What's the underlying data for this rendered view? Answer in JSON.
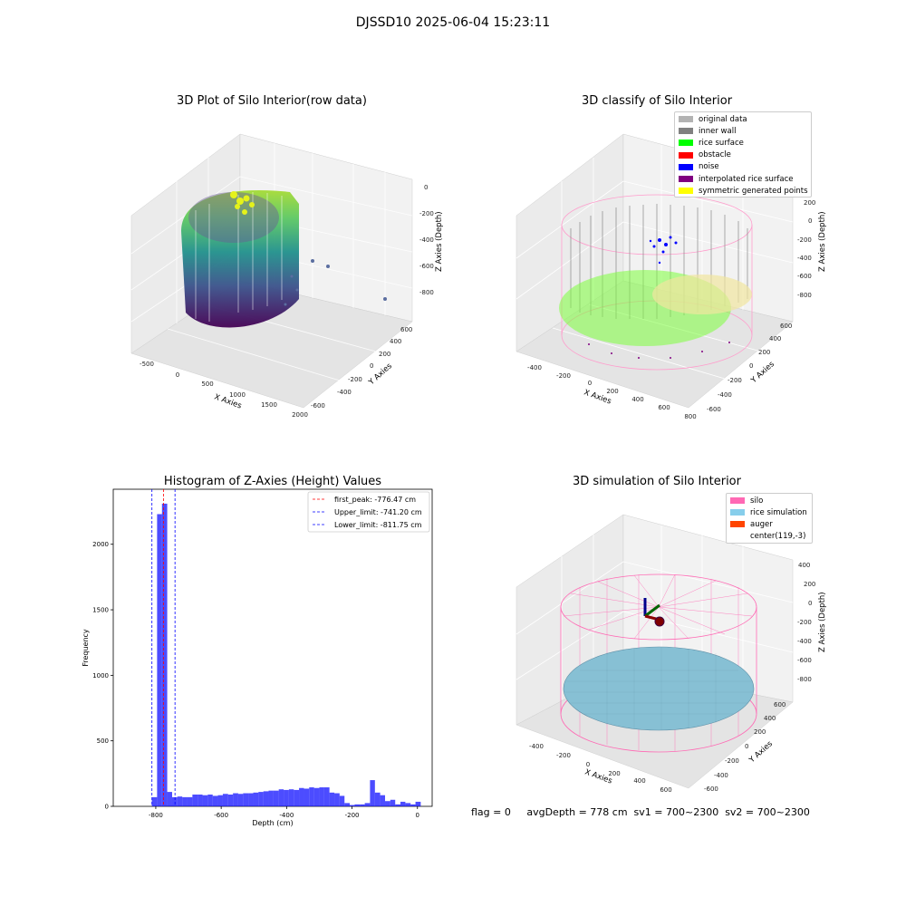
{
  "figure": {
    "suptitle": "DJSSD10 2025-06-04 15:23:11",
    "footer": "flag = 0     avgDepth = 778 cm  sv1 = 700~2300  sv2 = 700~2300"
  },
  "panels": {
    "raw": {
      "title": "3D Plot of Silo Interior(row data)",
      "xlabel": "X Axies",
      "ylabel": "Y Axies",
      "zlabel": "Z Axies (Depth)",
      "xticks": [
        "-500",
        "0",
        "500",
        "1000",
        "1500",
        "2000"
      ],
      "yticks": [
        "-600",
        "-400",
        "-200",
        "0",
        "200",
        "400",
        "600"
      ],
      "zticks": [
        "0",
        "-200",
        "-400",
        "-600",
        "-800"
      ]
    },
    "classify": {
      "title": "3D classify of Silo Interior",
      "xlabel": "X Axies",
      "ylabel": "Y Axies",
      "zlabel": "Z Axies (Depth)",
      "xticks": [
        "-400",
        "-200",
        "0",
        "200",
        "400",
        "600",
        "800"
      ],
      "yticks": [
        "-600",
        "-400",
        "-200",
        "0",
        "200",
        "400",
        "600"
      ],
      "zticks": [
        "200",
        "0",
        "-200",
        "-400",
        "-600",
        "-800"
      ],
      "legend": [
        {
          "label": "original data",
          "color": "#b3b3b3"
        },
        {
          "label": "inner wall",
          "color": "#808080"
        },
        {
          "label": "rice surface",
          "color": "#00ff00"
        },
        {
          "label": "obstacle",
          "color": "#ff0000"
        },
        {
          "label": "noise",
          "color": "#0000ff"
        },
        {
          "label": "interpolated rice surface",
          "color": "#800080"
        },
        {
          "label": "symmetric generated points",
          "color": "#ffff00"
        }
      ]
    },
    "simulation": {
      "title": "3D simulation of Silo Interior",
      "xlabel": "X Axies",
      "ylabel": "Y Axies",
      "zlabel": "Z Axies (Depth)",
      "xticks": [
        "-400",
        "-200",
        "0",
        "200",
        "400",
        "600"
      ],
      "yticks": [
        "-600",
        "-400",
        "-200",
        "0",
        "200",
        "400",
        "600"
      ],
      "zticks": [
        "400",
        "200",
        "0",
        "-200",
        "-400",
        "-600",
        "-800"
      ],
      "legend": [
        {
          "label": "silo",
          "color": "#ff69b4"
        },
        {
          "label": "rice simulation",
          "color": "#87ceeb"
        },
        {
          "label": "auger",
          "color": "#ff4500"
        },
        {
          "label": "center(119,-3)",
          "color": "#ffffff"
        }
      ]
    }
  },
  "chart_data": {
    "type": "bar",
    "title": "Histogram of Z-Axies (Height) Values",
    "xlabel": "Depth (cm)",
    "ylabel": "Frequency",
    "xlim": [
      -930,
      45
    ],
    "ylim": [
      0,
      2420
    ],
    "xticks": [
      -800,
      -600,
      -400,
      -200,
      0
    ],
    "yticks": [
      0,
      500,
      1000,
      1500,
      2000
    ],
    "bar_color": "#0000ff",
    "bins": [
      {
        "x0": -812,
        "x1": -796,
        "count": 70
      },
      {
        "x0": -796,
        "x1": -781,
        "count": 2230
      },
      {
        "x0": -781,
        "x1": -765,
        "count": 2310
      },
      {
        "x0": -765,
        "x1": -750,
        "count": 110
      },
      {
        "x0": -750,
        "x1": -734,
        "count": 70
      },
      {
        "x0": -734,
        "x1": -719,
        "count": 75
      },
      {
        "x0": -719,
        "x1": -703,
        "count": 70
      },
      {
        "x0": -703,
        "x1": -688,
        "count": 70
      },
      {
        "x0": -688,
        "x1": -672,
        "count": 90
      },
      {
        "x0": -672,
        "x1": -657,
        "count": 90
      },
      {
        "x0": -657,
        "x1": -641,
        "count": 85
      },
      {
        "x0": -641,
        "x1": -626,
        "count": 90
      },
      {
        "x0": -626,
        "x1": -610,
        "count": 80
      },
      {
        "x0": -610,
        "x1": -595,
        "count": 85
      },
      {
        "x0": -595,
        "x1": -579,
        "count": 95
      },
      {
        "x0": -579,
        "x1": -564,
        "count": 90
      },
      {
        "x0": -564,
        "x1": -548,
        "count": 100
      },
      {
        "x0": -548,
        "x1": -533,
        "count": 95
      },
      {
        "x0": -533,
        "x1": -517,
        "count": 100
      },
      {
        "x0": -517,
        "x1": -502,
        "count": 100
      },
      {
        "x0": -502,
        "x1": -486,
        "count": 105
      },
      {
        "x0": -486,
        "x1": -471,
        "count": 110
      },
      {
        "x0": -471,
        "x1": -455,
        "count": 115
      },
      {
        "x0": -455,
        "x1": -440,
        "count": 120
      },
      {
        "x0": -440,
        "x1": -424,
        "count": 120
      },
      {
        "x0": -424,
        "x1": -409,
        "count": 130
      },
      {
        "x0": -409,
        "x1": -393,
        "count": 125
      },
      {
        "x0": -393,
        "x1": -378,
        "count": 130
      },
      {
        "x0": -378,
        "x1": -362,
        "count": 125
      },
      {
        "x0": -362,
        "x1": -347,
        "count": 140
      },
      {
        "x0": -347,
        "x1": -331,
        "count": 135
      },
      {
        "x0": -331,
        "x1": -316,
        "count": 145
      },
      {
        "x0": -316,
        "x1": -300,
        "count": 140
      },
      {
        "x0": -300,
        "x1": -285,
        "count": 145
      },
      {
        "x0": -285,
        "x1": -269,
        "count": 145
      },
      {
        "x0": -269,
        "x1": -254,
        "count": 105
      },
      {
        "x0": -254,
        "x1": -238,
        "count": 100
      },
      {
        "x0": -238,
        "x1": -223,
        "count": 80
      },
      {
        "x0": -223,
        "x1": -207,
        "count": 25
      },
      {
        "x0": -207,
        "x1": -192,
        "count": 10
      },
      {
        "x0": -192,
        "x1": -176,
        "count": 15
      },
      {
        "x0": -176,
        "x1": -161,
        "count": 15
      },
      {
        "x0": -161,
        "x1": -145,
        "count": 25
      },
      {
        "x0": -145,
        "x1": -130,
        "count": 200
      },
      {
        "x0": -130,
        "x1": -114,
        "count": 105
      },
      {
        "x0": -114,
        "x1": -99,
        "count": 85
      },
      {
        "x0": -99,
        "x1": -83,
        "count": 40
      },
      {
        "x0": -83,
        "x1": -68,
        "count": 50
      },
      {
        "x0": -68,
        "x1": -52,
        "count": 15
      },
      {
        "x0": -52,
        "x1": -37,
        "count": 35
      },
      {
        "x0": -37,
        "x1": -21,
        "count": 25
      },
      {
        "x0": -21,
        "x1": -6,
        "count": 15
      },
      {
        "x0": -6,
        "x1": 10,
        "count": 35
      }
    ],
    "vlines": [
      {
        "label": "first_peak: -776.47 cm",
        "x": -776.47,
        "color": "#ff0000"
      },
      {
        "label": "Upper_limit: -741.20 cm",
        "x": -741.2,
        "color": "#0000ff"
      },
      {
        "label": "Lower_limit: -811.75 cm",
        "x": -811.75,
        "color": "#0000ff"
      }
    ],
    "legend_position": "top-right"
  }
}
